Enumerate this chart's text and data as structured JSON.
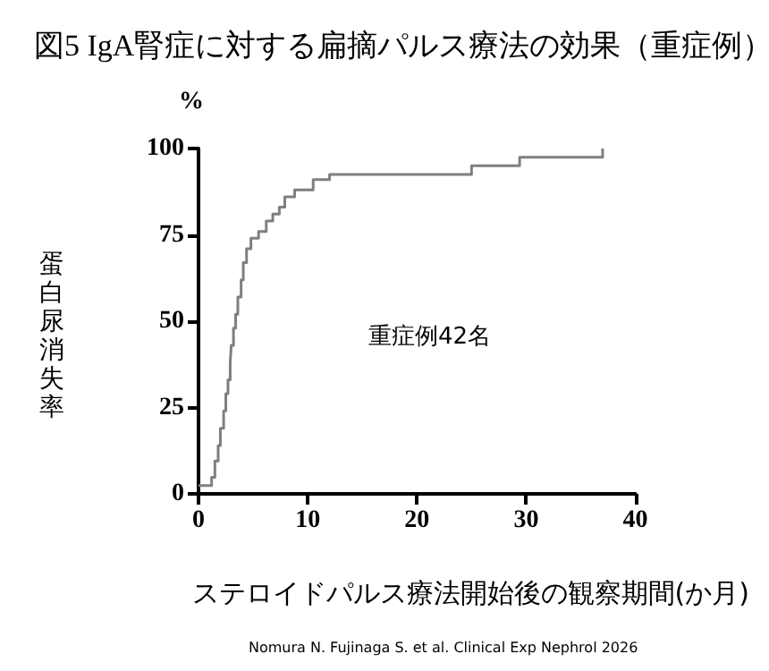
{
  "chart_data": {
    "type": "step",
    "title": "図5 IgA腎症に対する扁摘パルス療法の効果（重症例）",
    "xlabel": "ステロイドパルス療法開始後の観察期間(か月)",
    "ylabel": "蛋白尿消失率",
    "annotations": [
      "%",
      "重症例42名",
      "Nomura N. Fujinaga S. et al. Clinical Exp Nephrol 2026"
    ],
    "x": [
      0,
      1.2,
      1.5,
      1.8,
      2.0,
      2.3,
      2.5,
      2.7,
      2.9,
      3.0,
      3.2,
      3.4,
      3.6,
      3.9,
      4.1,
      4.4,
      4.8,
      5.5,
      6.2,
      6.8,
      7.4,
      7.9,
      8.8,
      10.5,
      12,
      25,
      29.4,
      37
    ],
    "series": [
      {
        "color": "#7f7f7f",
        "values": [
          2.4,
          4.8,
          9.5,
          14,
          19,
          24,
          29,
          33,
          38,
          43,
          48,
          52,
          57,
          62,
          67,
          71,
          74,
          76,
          79,
          81,
          83,
          86,
          88,
          91,
          92.5,
          95,
          97.5,
          100
        ]
      }
    ],
    "xlim": [
      0,
      40
    ],
    "xticks": [
      0,
      10,
      20,
      30,
      40
    ],
    "ylim": [
      0,
      100
    ],
    "yticks": [
      0,
      25,
      50,
      75,
      100
    ],
    "grid": false,
    "marker": "none",
    "line_style": "solid"
  }
}
